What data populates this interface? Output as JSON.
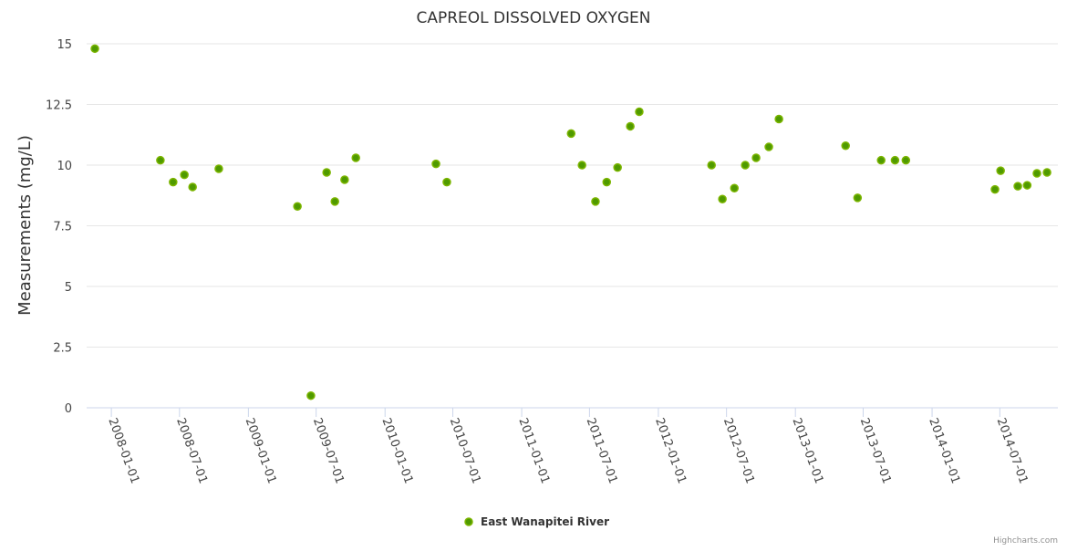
{
  "chart_data": {
    "type": "scatter",
    "title": "CAPREOL DISSOLVED OXYGEN",
    "xlabel": "",
    "ylabel": "Measurements (mg/L)",
    "ylim": [
      0,
      15
    ],
    "xlim": [
      "2007-10-27",
      "2014-12-03"
    ],
    "grid": true,
    "legend_position": "bottom-center",
    "yticks": [
      0,
      2.5,
      5,
      7.5,
      10,
      12.5,
      15
    ],
    "ytick_labels": [
      "0",
      "2.5",
      "5",
      "7.5",
      "10",
      "12.5",
      "15"
    ],
    "xticks": [
      "2008-01-01",
      "2008-07-01",
      "2009-01-01",
      "2009-07-01",
      "2010-01-01",
      "2010-07-01",
      "2011-01-01",
      "2011-07-01",
      "2012-01-01",
      "2012-07-01",
      "2013-01-01",
      "2013-07-01",
      "2014-01-01",
      "2014-07-01"
    ],
    "series": [
      {
        "name": "East Wanapitei River",
        "color": "#7cb500",
        "points": [
          [
            "2007-11-18",
            14.8
          ],
          [
            "2008-05-11",
            10.2
          ],
          [
            "2008-06-14",
            9.3
          ],
          [
            "2008-07-14",
            9.6
          ],
          [
            "2008-08-05",
            9.1
          ],
          [
            "2008-10-14",
            9.85
          ],
          [
            "2009-05-12",
            8.3
          ],
          [
            "2009-06-17",
            0.5
          ],
          [
            "2009-07-29",
            9.7
          ],
          [
            "2009-08-20",
            8.5
          ],
          [
            "2009-09-15",
            9.4
          ],
          [
            "2009-10-15",
            10.3
          ],
          [
            "2010-05-17",
            10.05
          ],
          [
            "2010-06-15",
            9.3
          ],
          [
            "2011-05-13",
            11.3
          ],
          [
            "2011-06-11",
            10.0
          ],
          [
            "2011-07-17",
            8.5
          ],
          [
            "2011-08-16",
            9.3
          ],
          [
            "2011-09-14",
            9.9
          ],
          [
            "2011-10-18",
            11.6
          ],
          [
            "2011-11-11",
            12.2
          ],
          [
            "2012-05-22",
            10.0
          ],
          [
            "2012-06-20",
            8.6
          ],
          [
            "2012-07-22",
            9.05
          ],
          [
            "2012-08-20",
            10.0
          ],
          [
            "2012-09-18",
            10.3
          ],
          [
            "2012-10-22",
            10.75
          ],
          [
            "2012-11-18",
            11.9
          ],
          [
            "2013-05-15",
            10.8
          ],
          [
            "2013-06-16",
            8.65
          ],
          [
            "2013-08-18",
            10.2
          ],
          [
            "2013-09-24",
            10.2
          ],
          [
            "2013-10-23",
            10.2
          ],
          [
            "2014-06-18",
            9.0
          ],
          [
            "2014-07-03",
            9.77
          ],
          [
            "2014-08-18",
            9.13
          ],
          [
            "2014-09-12",
            9.17
          ],
          [
            "2014-10-08",
            9.66
          ],
          [
            "2014-11-04",
            9.7
          ]
        ]
      }
    ]
  },
  "credits": "Highcharts.com"
}
